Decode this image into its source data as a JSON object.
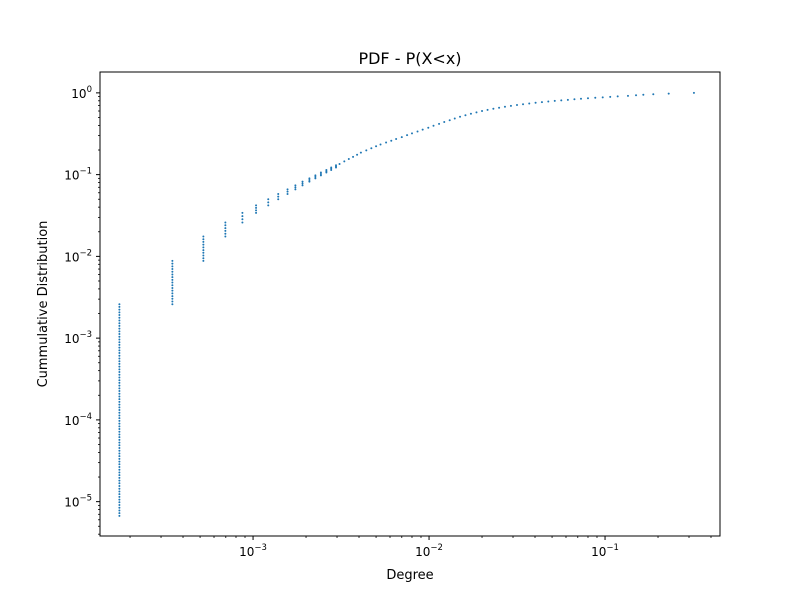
{
  "chart_data": {
    "type": "scatter",
    "title": "PDF - P(X<x)",
    "xlabel": "Degree",
    "ylabel": "Cummulative Distribution",
    "xscale": "log",
    "yscale": "log",
    "xlim": [
      0.000135,
      0.45
    ],
    "ylim": [
      3.8e-06,
      1.8
    ],
    "grid": false,
    "legend": "none",
    "marker_color": "#1f77b4",
    "x_ticks": [
      {
        "value": 0.001,
        "base": "10",
        "exp": "−3"
      },
      {
        "value": 0.01,
        "base": "10",
        "exp": "−2"
      },
      {
        "value": 0.1,
        "base": "10",
        "exp": "−1"
      }
    ],
    "y_ticks": [
      {
        "value": 1e-05,
        "base": "10",
        "exp": "−5"
      },
      {
        "value": 0.0001,
        "base": "10",
        "exp": "−4"
      },
      {
        "value": 0.001,
        "base": "10",
        "exp": "−3"
      },
      {
        "value": 0.01,
        "base": "10",
        "exp": "−2"
      },
      {
        "value": 0.1,
        "base": "10",
        "exp": "−1"
      },
      {
        "value": 1,
        "base": "10",
        "exp": "0"
      }
    ],
    "columns": [
      {
        "x": 0.000174,
        "y_min": 6.7e-06,
        "y_max": 0.0026
      },
      {
        "x": 0.000348,
        "y_min": 0.0026,
        "y_max": 0.0088
      },
      {
        "x": 0.000522,
        "y_min": 0.0088,
        "y_max": 0.0175
      },
      {
        "x": 0.000696,
        "y_min": 0.0175,
        "y_max": 0.026
      },
      {
        "x": 0.00087,
        "y_min": 0.026,
        "y_max": 0.034
      },
      {
        "x": 0.00104,
        "y_min": 0.034,
        "y_max": 0.042
      },
      {
        "x": 0.00122,
        "y_min": 0.042,
        "y_max": 0.05
      },
      {
        "x": 0.00139,
        "y_min": 0.05,
        "y_max": 0.058
      },
      {
        "x": 0.00157,
        "y_min": 0.058,
        "y_max": 0.066
      },
      {
        "x": 0.00174,
        "y_min": 0.066,
        "y_max": 0.074
      },
      {
        "x": 0.00191,
        "y_min": 0.074,
        "y_max": 0.082
      },
      {
        "x": 0.00209,
        "y_min": 0.082,
        "y_max": 0.09
      },
      {
        "x": 0.00226,
        "y_min": 0.09,
        "y_max": 0.098
      },
      {
        "x": 0.00243,
        "y_min": 0.098,
        "y_max": 0.106
      },
      {
        "x": 0.00261,
        "y_min": 0.106,
        "y_max": 0.114
      },
      {
        "x": 0.00278,
        "y_min": 0.114,
        "y_max": 0.122
      },
      {
        "x": 0.00296,
        "y_min": 0.122,
        "y_max": 0.13
      }
    ],
    "points": [
      {
        "x": 0.0031,
        "y": 0.135
      },
      {
        "x": 0.0033,
        "y": 0.145
      },
      {
        "x": 0.0035,
        "y": 0.155
      },
      {
        "x": 0.0037,
        "y": 0.165
      },
      {
        "x": 0.0039,
        "y": 0.175
      },
      {
        "x": 0.0041,
        "y": 0.186
      },
      {
        "x": 0.0044,
        "y": 0.198
      },
      {
        "x": 0.0047,
        "y": 0.21
      },
      {
        "x": 0.005,
        "y": 0.222
      },
      {
        "x": 0.0053,
        "y": 0.234
      },
      {
        "x": 0.0057,
        "y": 0.247
      },
      {
        "x": 0.0061,
        "y": 0.26
      },
      {
        "x": 0.0065,
        "y": 0.273
      },
      {
        "x": 0.007,
        "y": 0.288
      },
      {
        "x": 0.0075,
        "y": 0.304
      },
      {
        "x": 0.008,
        "y": 0.32
      },
      {
        "x": 0.0086,
        "y": 0.337
      },
      {
        "x": 0.0092,
        "y": 0.355
      },
      {
        "x": 0.0099,
        "y": 0.375
      },
      {
        "x": 0.0106,
        "y": 0.396
      },
      {
        "x": 0.0114,
        "y": 0.418
      },
      {
        "x": 0.0122,
        "y": 0.44
      },
      {
        "x": 0.0131,
        "y": 0.463
      },
      {
        "x": 0.014,
        "y": 0.486
      },
      {
        "x": 0.015,
        "y": 0.51
      },
      {
        "x": 0.0161,
        "y": 0.533
      },
      {
        "x": 0.0173,
        "y": 0.556
      },
      {
        "x": 0.0186,
        "y": 0.578
      },
      {
        "x": 0.02,
        "y": 0.6
      },
      {
        "x": 0.0215,
        "y": 0.62
      },
      {
        "x": 0.0232,
        "y": 0.64
      },
      {
        "x": 0.025,
        "y": 0.658
      },
      {
        "x": 0.027,
        "y": 0.676
      },
      {
        "x": 0.0292,
        "y": 0.693
      },
      {
        "x": 0.0316,
        "y": 0.71
      },
      {
        "x": 0.0342,
        "y": 0.726
      },
      {
        "x": 0.0371,
        "y": 0.741
      },
      {
        "x": 0.0403,
        "y": 0.756
      },
      {
        "x": 0.0438,
        "y": 0.77
      },
      {
        "x": 0.0476,
        "y": 0.784
      },
      {
        "x": 0.0518,
        "y": 0.797
      },
      {
        "x": 0.0564,
        "y": 0.81
      },
      {
        "x": 0.0615,
        "y": 0.822
      },
      {
        "x": 0.067,
        "y": 0.834
      },
      {
        "x": 0.073,
        "y": 0.846
      },
      {
        "x": 0.08,
        "y": 0.858
      },
      {
        "x": 0.088,
        "y": 0.87
      },
      {
        "x": 0.097,
        "y": 0.882
      },
      {
        "x": 0.107,
        "y": 0.893
      },
      {
        "x": 0.118,
        "y": 0.905
      },
      {
        "x": 0.135,
        "y": 0.92
      },
      {
        "x": 0.15,
        "y": 0.935
      },
      {
        "x": 0.165,
        "y": 0.948
      },
      {
        "x": 0.188,
        "y": 0.963
      },
      {
        "x": 0.23,
        "y": 0.98
      },
      {
        "x": 0.32,
        "y": 1.0
      }
    ]
  }
}
